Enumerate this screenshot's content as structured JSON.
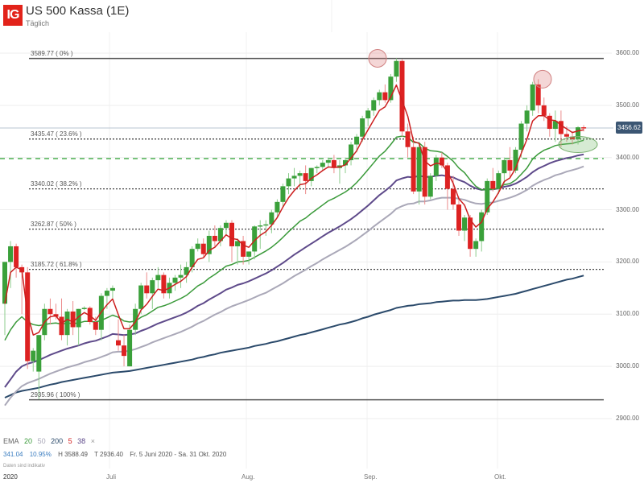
{
  "header": {
    "logo": "IG",
    "title": "US 500 Kassa (1E)",
    "subtitle": "Täglich"
  },
  "legend": {
    "indicator": "EMA",
    "periods": [
      {
        "label": "20",
        "color": "#3a9a3a"
      },
      {
        "label": "50",
        "color": "#aaa8b8"
      },
      {
        "label": "200",
        "color": "#2b4a6b"
      },
      {
        "label": "5",
        "color": "#d42020"
      },
      {
        "label": "38",
        "color": "#5e4a8a"
      }
    ],
    "close": "×"
  },
  "stats": {
    "change": "341.04",
    "change_pct": "10.95%",
    "high": "H 3588.49",
    "low": "T 2936.40",
    "range": "Fr. 5 Juni 2020 - Sa. 31 Okt. 2020"
  },
  "note": "Daten sind indikativ",
  "current_price": "3456.62",
  "chart_data": {
    "type": "candlestick",
    "title": "US 500 Kassa (1E)",
    "subtitle": "Täglich",
    "xlabel": "",
    "ylabel": "",
    "ylim": [
      2880,
      3640
    ],
    "y_ticks": [
      "3600.00",
      "3500.00",
      "3400.00",
      "3300.00",
      "3200.00",
      "3100.00",
      "3000.00",
      "2900.00"
    ],
    "x_ticks": [
      "2020",
      "Juli",
      "Aug.",
      "Sep.",
      "Okt."
    ],
    "x_tick_pos": [
      4,
      136,
      306,
      456,
      618
    ],
    "grid": true,
    "fibonacci": [
      {
        "label": "3589.77 ( 0% )",
        "value": 3589.77,
        "style": "solid"
      },
      {
        "label": "3435.47 ( 23.6% )",
        "value": 3435.47,
        "style": "dotted"
      },
      {
        "label": "3340.02 ( 38.2% )",
        "value": 3340.02,
        "style": "dotted"
      },
      {
        "label": "3262.87 ( 50% )",
        "value": 3262.87,
        "style": "dotted"
      },
      {
        "label": "3185.72 ( 61.8% )",
        "value": 3185.72,
        "style": "dotted"
      },
      {
        "label": "2935.96 ( 100% )",
        "value": 2935.96,
        "style": "solid"
      }
    ],
    "support_line": {
      "value": 3398,
      "style": "dashed",
      "color": "#4caf50"
    },
    "current_line": {
      "value": 3456.62
    },
    "annotations": [
      {
        "type": "circle",
        "x": 469,
        "value": 3590,
        "color": "#e0a0a0"
      },
      {
        "type": "circle",
        "x": 674,
        "value": 3550,
        "color": "#e0a0a0"
      },
      {
        "type": "ellipse",
        "x": 718,
        "value": 3425,
        "color": "#a8d0a0"
      }
    ],
    "candles_ohlc": [
      [
        3120,
        3200,
        3060,
        3200
      ],
      [
        3200,
        3240,
        3150,
        3230
      ],
      [
        3230,
        3235,
        3170,
        3190
      ],
      [
        3190,
        3195,
        3100,
        3180
      ],
      [
        3180,
        3190,
        2995,
        3010
      ],
      [
        3010,
        3035,
        2990,
        3030
      ],
      [
        2990,
        3060,
        2937,
        3060
      ],
      [
        3060,
        3120,
        3050,
        3110
      ],
      [
        3110,
        3130,
        3080,
        3100
      ],
      [
        3100,
        3120,
        3090,
        3095
      ],
      [
        3095,
        3130,
        3050,
        3060
      ],
      [
        3060,
        3110,
        3040,
        3105
      ],
      [
        3105,
        3125,
        3060,
        3075
      ],
      [
        3075,
        3110,
        3040,
        3110
      ],
      [
        3110,
        3115,
        3108,
        3112
      ],
      [
        3112,
        3115,
        3080,
        3085
      ],
      [
        3085,
        3095,
        3060,
        3070
      ],
      [
        3070,
        3140,
        3050,
        3135
      ],
      [
        3135,
        3150,
        3110,
        3145
      ],
      [
        3145,
        3155,
        3130,
        3150
      ],
      [
        3050,
        3090,
        3030,
        3040
      ],
      [
        3040,
        3060,
        3000,
        3020
      ],
      [
        3000,
        3080,
        3000,
        3070
      ],
      [
        3070,
        3120,
        3060,
        3110
      ],
      [
        3110,
        3160,
        3100,
        3155
      ],
      [
        3155,
        3180,
        3130,
        3140
      ],
      [
        3140,
        3170,
        3110,
        3165
      ],
      [
        3165,
        3190,
        3150,
        3175
      ],
      [
        3175,
        3180,
        3130,
        3140
      ],
      [
        3140,
        3170,
        3130,
        3160
      ],
      [
        3160,
        3175,
        3145,
        3170
      ],
      [
        3170,
        3195,
        3150,
        3175
      ],
      [
        3175,
        3200,
        3160,
        3190
      ],
      [
        3190,
        3230,
        3180,
        3225
      ],
      [
        3225,
        3245,
        3220,
        3235
      ],
      [
        3235,
        3245,
        3210,
        3215
      ],
      [
        3215,
        3260,
        3200,
        3250
      ],
      [
        3250,
        3270,
        3230,
        3240
      ],
      [
        3240,
        3270,
        3230,
        3265
      ],
      [
        3265,
        3280,
        3250,
        3275
      ],
      [
        3275,
        3280,
        3200,
        3230
      ],
      [
        3230,
        3245,
        3195,
        3240
      ],
      [
        3240,
        3250,
        3195,
        3210
      ],
      [
        3210,
        3220,
        3195,
        3220
      ],
      [
        3220,
        3270,
        3205,
        3268
      ],
      [
        3268,
        3280,
        3225,
        3270
      ],
      [
        3270,
        3280,
        3250,
        3272
      ],
      [
        3272,
        3300,
        3255,
        3295
      ],
      [
        3295,
        3320,
        3285,
        3315
      ],
      [
        3315,
        3350,
        3305,
        3345
      ],
      [
        3345,
        3370,
        3330,
        3360
      ],
      [
        3360,
        3380,
        3345,
        3365
      ],
      [
        3365,
        3375,
        3340,
        3370
      ],
      [
        3370,
        3385,
        3330,
        3355
      ],
      [
        3355,
        3380,
        3345,
        3380
      ],
      [
        3380,
        3385,
        3370,
        3382
      ],
      [
        3382,
        3395,
        3375,
        3390
      ],
      [
        3390,
        3400,
        3380,
        3395
      ],
      [
        3395,
        3405,
        3370,
        3380
      ],
      [
        3380,
        3395,
        3350,
        3385
      ],
      [
        3385,
        3400,
        3370,
        3395
      ],
      [
        3395,
        3430,
        3385,
        3425
      ],
      [
        3425,
        3445,
        3410,
        3440
      ],
      [
        3440,
        3480,
        3430,
        3475
      ],
      [
        3475,
        3495,
        3460,
        3490
      ],
      [
        3490,
        3515,
        3480,
        3510
      ],
      [
        3510,
        3530,
        3500,
        3525
      ],
      [
        3525,
        3540,
        3505,
        3510
      ],
      [
        3510,
        3560,
        3505,
        3555
      ],
      [
        3555,
        3590,
        3545,
        3585
      ],
      [
        3585,
        3588,
        3440,
        3450
      ],
      [
        3450,
        3465,
        3400,
        3420
      ],
      [
        3420,
        3440,
        3330,
        3335
      ],
      [
        3335,
        3430,
        3310,
        3420
      ],
      [
        3420,
        3430,
        3310,
        3325
      ],
      [
        3325,
        3370,
        3320,
        3365
      ],
      [
        3365,
        3405,
        3355,
        3400
      ],
      [
        3400,
        3410,
        3380,
        3385
      ],
      [
        3385,
        3390,
        3300,
        3340
      ],
      [
        3340,
        3365,
        3300,
        3310
      ],
      [
        3310,
        3325,
        3250,
        3260
      ],
      [
        3260,
        3290,
        3240,
        3285
      ],
      [
        3285,
        3290,
        3210,
        3225
      ],
      [
        3225,
        3245,
        3210,
        3240
      ],
      [
        3240,
        3300,
        3220,
        3295
      ],
      [
        3295,
        3360,
        3290,
        3355
      ],
      [
        3355,
        3380,
        3335,
        3340
      ],
      [
        3340,
        3375,
        3330,
        3370
      ],
      [
        3370,
        3400,
        3350,
        3395
      ],
      [
        3395,
        3420,
        3360,
        3375
      ],
      [
        3375,
        3420,
        3370,
        3415
      ],
      [
        3415,
        3470,
        3400,
        3465
      ],
      [
        3465,
        3500,
        3450,
        3490
      ],
      [
        3490,
        3545,
        3480,
        3540
      ],
      [
        3540,
        3550,
        3485,
        3500
      ],
      [
        3500,
        3515,
        3470,
        3480
      ],
      [
        3480,
        3485,
        3440,
        3455
      ],
      [
        3455,
        3490,
        3430,
        3470
      ],
      [
        3470,
        3490,
        3420,
        3445
      ],
      [
        3445,
        3460,
        3430,
        3440
      ],
      [
        3440,
        3450,
        3425,
        3435
      ],
      [
        3435,
        3460,
        3425,
        3458
      ],
      [
        3458,
        3462,
        3450,
        3456
      ]
    ],
    "ema_5": [
      3120,
      3180,
      3190,
      3185,
      3100,
      3060,
      3065,
      3085,
      3095,
      3097,
      3082,
      3090,
      3085,
      3095,
      3103,
      3097,
      3088,
      3104,
      3118,
      3129,
      3099,
      3072,
      3072,
      3085,
      3108,
      3119,
      3134,
      3148,
      3145,
      3150,
      3157,
      3163,
      3172,
      3190,
      3205,
      3208,
      3222,
      3228,
      3240,
      3252,
      3245,
      3243,
      3232,
      3228,
      3241,
      3251,
      3258,
      3270,
      3285,
      3305,
      3323,
      3337,
      3348,
      3350,
      3360,
      3367,
      3375,
      3382,
      3381,
      3382,
      3386,
      3399,
      3413,
      3434,
      3453,
      3472,
      3490,
      3497,
      3516,
      3539,
      3509,
      3479,
      3431,
      3427,
      3393,
      3384,
      3389,
      3388,
      3372,
      3351,
      3321,
      3309,
      3281,
      3267,
      3276,
      3302,
      3315,
      3333,
      3354,
      3361,
      3379,
      3408,
      3435,
      3470,
      3480,
      3480,
      3472,
      3471,
      3462,
      3455,
      3448,
      3451,
      3453
    ],
    "ema_20": [
      3050,
      3070,
      3085,
      3095,
      3085,
      3080,
      3078,
      3080,
      3082,
      3083,
      3081,
      3083,
      3082,
      3083,
      3086,
      3086,
      3085,
      3088,
      3093,
      3098,
      3094,
      3087,
      3085,
      3087,
      3094,
      3099,
      3106,
      3113,
      3116,
      3120,
      3125,
      3130,
      3136,
      3145,
      3154,
      3160,
      3169,
      3176,
      3184,
      3192,
      3195,
      3200,
      3201,
      3203,
      3209,
      3215,
      3221,
      3228,
      3237,
      3247,
      3258,
      3268,
      3278,
      3284,
      3293,
      3301,
      3309,
      3317,
      3322,
      3328,
      3334,
      3342,
      3352,
      3364,
      3377,
      3390,
      3403,
      3412,
      3425,
      3439,
      3441,
      3439,
      3429,
      3428,
      3418,
      3413,
      3412,
      3410,
      3402,
      3393,
      3380,
      3371,
      3357,
      3345,
      3338,
      3339,
      3339,
      3342,
      3348,
      3350,
      3357,
      3368,
      3380,
      3397,
      3407,
      3414,
      3418,
      3423,
      3425,
      3426,
      3427,
      3430,
      3433
    ],
    "ema_38": [
      2960,
      2975,
      2990,
      3000,
      3005,
      3008,
      3012,
      3017,
      3022,
      3026,
      3030,
      3034,
      3037,
      3040,
      3044,
      3047,
      3049,
      3053,
      3057,
      3062,
      3061,
      3060,
      3061,
      3063,
      3068,
      3072,
      3077,
      3082,
      3086,
      3090,
      3094,
      3098,
      3103,
      3109,
      3116,
      3121,
      3128,
      3134,
      3140,
      3147,
      3151,
      3156,
      3159,
      3163,
      3168,
      3173,
      3178,
      3184,
      3191,
      3198,
      3206,
      3214,
      3221,
      3228,
      3235,
      3242,
      3249,
      3256,
      3262,
      3268,
      3275,
      3282,
      3290,
      3299,
      3308,
      3318,
      3328,
      3336,
      3345,
      3356,
      3360,
      3363,
      3362,
      3365,
      3363,
      3363,
      3365,
      3366,
      3364,
      3362,
      3357,
      3353,
      3346,
      3341,
      3338,
      3339,
      3339,
      3341,
      3344,
      3346,
      3350,
      3356,
      3363,
      3372,
      3379,
      3384,
      3389,
      3393,
      3396,
      3399,
      3401,
      3404,
      3406
    ],
    "ema_50": [
      2925,
      2940,
      2952,
      2962,
      2968,
      2972,
      2976,
      2981,
      2986,
      2990,
      2994,
      2998,
      3001,
      3004,
      3008,
      3011,
      3014,
      3018,
      3022,
      3027,
      3028,
      3028,
      3030,
      3033,
      3037,
      3041,
      3046,
      3050,
      3054,
      3058,
      3062,
      3066,
      3071,
      3076,
      3082,
      3087,
      3093,
      3099,
      3104,
      3110,
      3115,
      3119,
      3123,
      3127,
      3132,
      3137,
      3141,
      3147,
      3153,
      3159,
      3166,
      3173,
      3179,
      3185,
      3192,
      3198,
      3205,
      3211,
      3217,
      3223,
      3229,
      3236,
      3243,
      3251,
      3259,
      3268,
      3276,
      3284,
      3292,
      3302,
      3307,
      3311,
      3312,
      3316,
      3316,
      3318,
      3321,
      3323,
      3323,
      3323,
      3321,
      3319,
      3315,
      3312,
      3311,
      3313,
      3314,
      3317,
      3320,
      3323,
      3327,
      3332,
      3338,
      3346,
      3352,
      3357,
      3361,
      3366,
      3369,
      3373,
      3376,
      3379,
      3383
    ],
    "ema_200": [
      2940,
      2945,
      2950,
      2953,
      2955,
      2957,
      2959,
      2962,
      2965,
      2967,
      2970,
      2972,
      2974,
      2976,
      2978,
      2980,
      2982,
      2984,
      2986,
      2988,
      2989,
      2990,
      2991,
      2993,
      2995,
      2997,
      2999,
      3001,
      3003,
      3005,
      3007,
      3009,
      3011,
      3013,
      3016,
      3018,
      3021,
      3023,
      3026,
      3028,
      3030,
      3032,
      3034,
      3036,
      3039,
      3041,
      3043,
      3046,
      3048,
      3051,
      3054,
      3057,
      3060,
      3062,
      3065,
      3068,
      3071,
      3074,
      3077,
      3080,
      3082,
      3085,
      3088,
      3092,
      3095,
      3099,
      3102,
      3105,
      3108,
      3112,
      3114,
      3116,
      3117,
      3119,
      3120,
      3121,
      3123,
      3124,
      3125,
      3126,
      3126,
      3127,
      3127,
      3127,
      3128,
      3129,
      3131,
      3133,
      3135,
      3137,
      3139,
      3142,
      3145,
      3148,
      3151,
      3154,
      3157,
      3160,
      3163,
      3166,
      3168,
      3171,
      3174
    ]
  }
}
